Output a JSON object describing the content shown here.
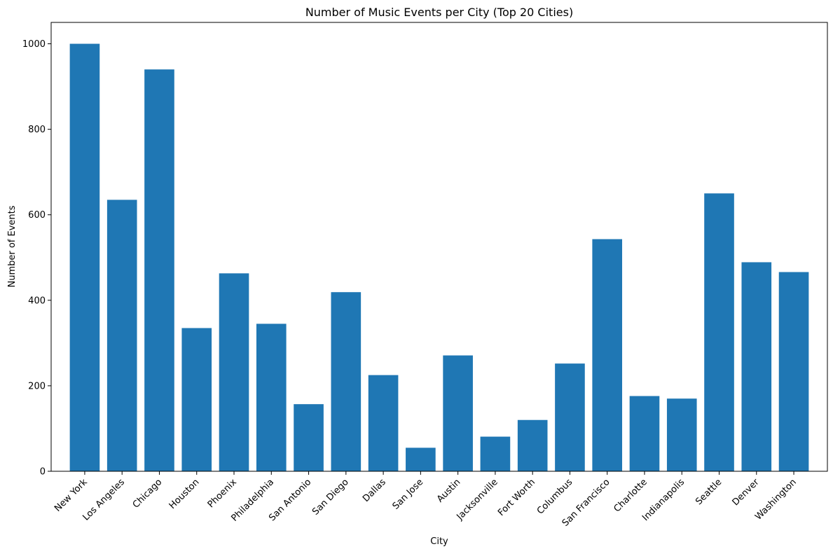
{
  "chart_data": {
    "type": "bar",
    "title": "Number of Music Events per City (Top 20 Cities)",
    "xlabel": "City",
    "ylabel": "Number of Events",
    "categories": [
      "New York",
      "Los Angeles",
      "Chicago",
      "Houston",
      "Phoenix",
      "Philadelphia",
      "San Antonio",
      "San Diego",
      "Dallas",
      "San Jose",
      "Austin",
      "Jacksonville",
      "Fort Worth",
      "Columbus",
      "San Francisco",
      "Charlotte",
      "Indianapolis",
      "Seattle",
      "Denver",
      "Washington"
    ],
    "values": [
      1000,
      635,
      940,
      335,
      463,
      345,
      157,
      419,
      225,
      55,
      271,
      81,
      120,
      252,
      543,
      176,
      170,
      650,
      489,
      466
    ],
    "ylim": [
      0,
      1050
    ],
    "yticks": [
      0,
      200,
      400,
      600,
      800,
      1000
    ],
    "bar_color": "#1f77b4",
    "grid": false,
    "legend": null
  }
}
